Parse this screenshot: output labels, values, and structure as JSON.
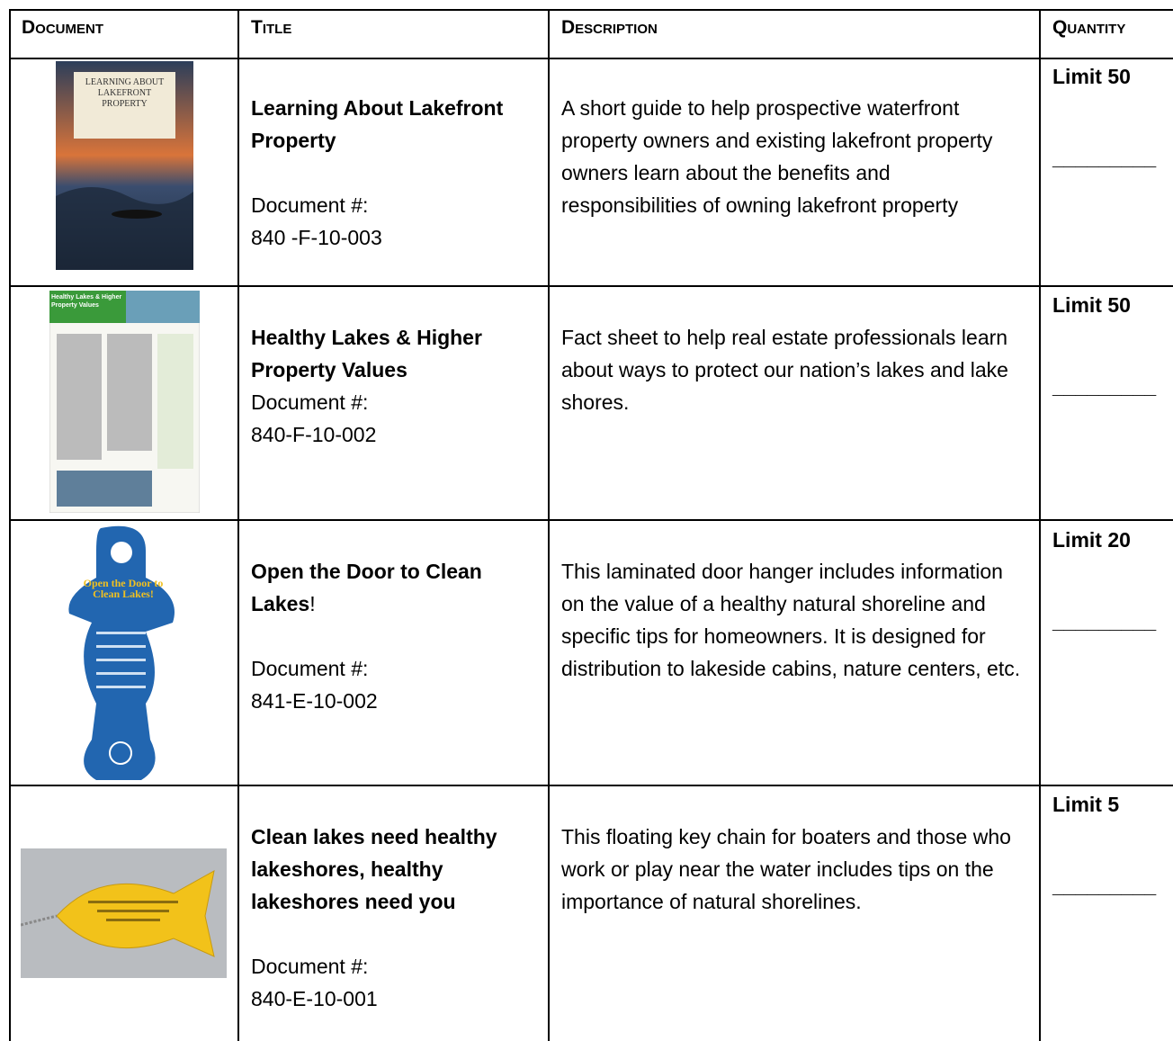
{
  "header": [
    "Document",
    "Title",
    "Description",
    "Quantity"
  ],
  "rows": [
    {
      "image_text": "LEARNING ABOUT LAKEFRONT PROPERTY",
      "title": "Learning About Lakefront Property",
      "doc_label": "Document #:",
      "doc_number": "840 -F-10-003",
      "description": "A short guide to help prospective waterfront property owners and existing lakefront property owners learn about the benefits and responsibilities of owning lakefront property",
      "quantity": "Limit 50",
      "quantity_line": "_________"
    },
    {
      "image_text": "Healthy Lakes & Higher Property Values",
      "title": "Healthy Lakes & Higher Property Values",
      "doc_label": "Document #:",
      "doc_number": "840-F-10-002",
      "description": "Fact sheet to help real estate professionals learn about ways to protect our nation’s lakes and lake shores.",
      "quantity": "Limit 50",
      "quantity_line": "_________"
    },
    {
      "image_text": "Open the Door to Clean Lakes!",
      "title": "Open the Door to Clean Lakes",
      "title_suffix": "!",
      "doc_label": "Document #:",
      "doc_number": "841-E-10-002",
      "description": "This laminated door hanger includes information on the value of a healthy natural shoreline and specific tips for homeowners. It is designed for distribution to lakeside cabins, nature centers, etc.",
      "quantity": "Limit 20",
      "quantity_line": "_________"
    },
    {
      "title": "Clean lakes need healthy lakeshores, healthy lakeshores need you",
      "doc_label": "Document #:",
      "doc_number": "840-E-10-001",
      "description": "This floating key chain for boaters and those who work or play near the water includes tips on the importance of natural shorelines.",
      "quantity": "Limit 5",
      "quantity_line": "_________"
    }
  ]
}
